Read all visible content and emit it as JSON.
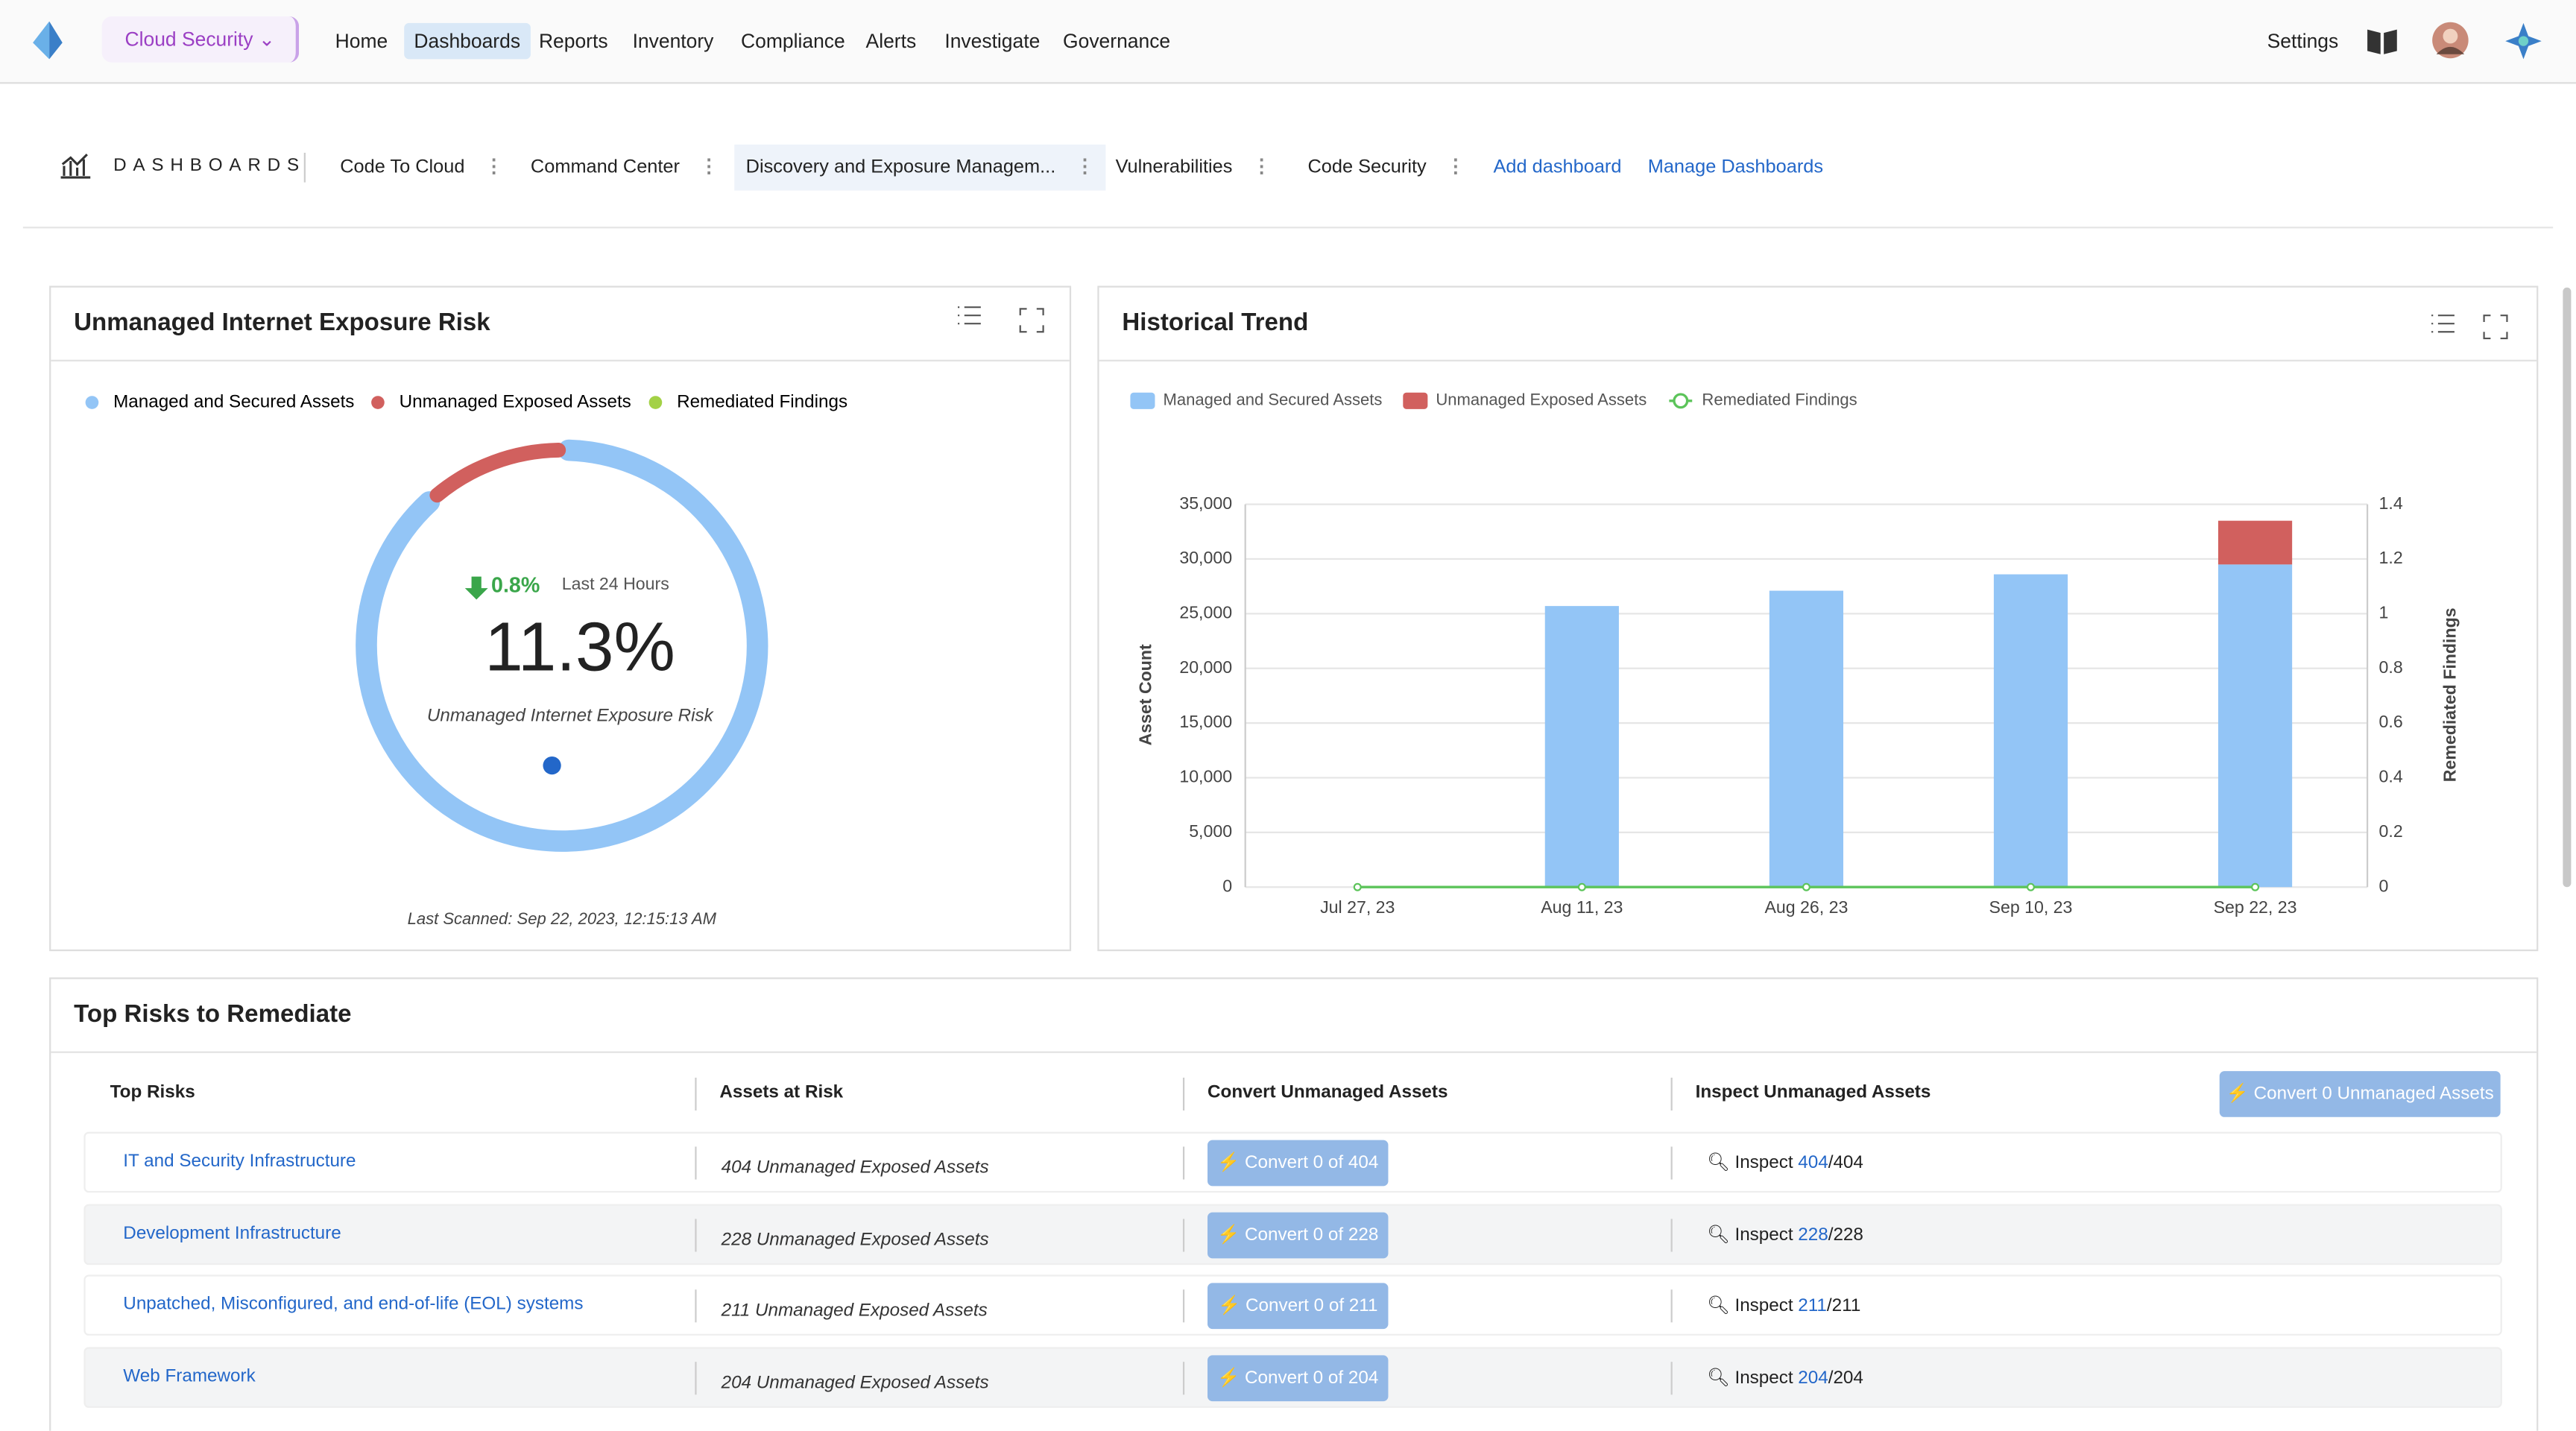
{
  "nav": {
    "product": "Cloud Security",
    "items": [
      "Home",
      "Dashboards",
      "Reports",
      "Inventory",
      "Compliance",
      "Alerts",
      "Investigate",
      "Governance"
    ],
    "active": 1,
    "settings": "Settings"
  },
  "dashboards": {
    "label": "DASHBOARDS",
    "tabs": [
      "Code To Cloud",
      "Command Center",
      "Discovery and Exposure Managem...",
      "Vulnerabilities",
      "Code Security"
    ],
    "active": 2,
    "links": [
      "Add dashboard",
      "Manage Dashboards"
    ]
  },
  "chart_data": [
    {
      "type": "gauge",
      "title": "Unmanaged Internet Exposure Risk",
      "series": [
        {
          "name": "Managed and Secured Assets",
          "color": "#93c5f6"
        },
        {
          "name": "Unmanaged Exposed Assets",
          "color": "#d1605e"
        },
        {
          "name": "Remediated Findings",
          "color": "#a3d146"
        }
      ],
      "values": [
        11.3
      ],
      "value_labels": [
        "11.3%"
      ],
      "caption": "Unmanaged Internet Exposure Risk",
      "change": {
        "values": [
          0.8
        ],
        "value_labels": [
          "0.8%"
        ],
        "period": "Last 24 Hours"
      },
      "footer": "Last Scanned:  Sep 22, 2023, 12:15:13 AM"
    },
    {
      "type": "bar",
      "stacked": true,
      "title": "Historical Trend",
      "categories": [
        "Jul 27, 23",
        "Aug 11, 23",
        "Aug 26, 23",
        "Sep 10, 23",
        "Sep 22, 23"
      ],
      "series": [
        {
          "name": "Managed and Secured Assets",
          "color": "#93c5f6",
          "values": [
            0,
            25700,
            27100,
            28600,
            29500
          ]
        },
        {
          "name": "Unmanaged Exposed Assets",
          "color": "#d1605e",
          "values": [
            0,
            0,
            0,
            0,
            4000
          ]
        },
        {
          "name": "Remediated Findings",
          "type": "line",
          "axis": "y2",
          "color": "#5cc45a",
          "values": [
            0,
            0,
            0,
            0,
            0
          ]
        }
      ],
      "ylabel": "Asset Count",
      "y2label": "Remediated Findings",
      "ylim": [
        0,
        35000
      ],
      "yticks": [
        0,
        {
          "value": 5000,
          "label": "5,000"
        },
        {
          "value": 10000,
          "label": "10,000"
        },
        {
          "value": 15000,
          "label": "15,000"
        },
        {
          "value": 20000,
          "label": "20,000"
        },
        {
          "value": 25000,
          "label": "25,000"
        },
        {
          "value": 30000,
          "label": "30,000"
        },
        {
          "value": 35000,
          "label": "35,000"
        }
      ],
      "y2lim": [
        0,
        1.4
      ],
      "y2ticks": [
        0,
        0.2,
        0.4,
        0.6,
        0.8,
        1,
        1.2,
        1.4
      ],
      "grid": true
    }
  ],
  "top_risks": {
    "title": "Top Risks to Remediate",
    "columns": [
      "Top Risks",
      "Assets at Risk",
      "Convert Unmanaged Assets",
      "Inspect Unmanaged Assets"
    ],
    "action": "Convert 0 Unmanaged Assets",
    "rows": [
      [
        "IT and Security Infrastructure",
        "404 Unmanaged Exposed Assets",
        "Convert 0 of 404",
        "Inspect",
        "404",
        "/404"
      ],
      [
        "Development Infrastructure",
        "228 Unmanaged Exposed Assets",
        "Convert 0 of 228",
        "Inspect",
        "228",
        "/228"
      ],
      [
        "Unpatched, Misconfigured, and end-of-life (EOL) systems",
        "211 Unmanaged Exposed Assets",
        "Convert 0 of 211",
        "Inspect",
        "211",
        "/211"
      ],
      [
        "Web Framework",
        "204 Unmanaged Exposed Assets",
        "Convert 0 of 204",
        "Inspect",
        "204",
        "/204"
      ]
    ]
  }
}
